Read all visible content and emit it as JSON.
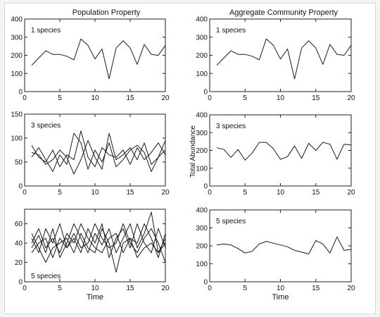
{
  "columns": {
    "left_title": "Population Property",
    "right_title": "Aggregate Community Property"
  },
  "shared_ylabel": "Total Abundance",
  "chart_data": [
    {
      "type": "line",
      "panel": "population-1-species",
      "annotation": "1 species",
      "xlabel": "",
      "xlim": [
        0,
        20
      ],
      "ylim": [
        0,
        400
      ],
      "xticks": [
        0,
        5,
        10,
        15,
        20
      ],
      "yticks": [
        0,
        100,
        200,
        300,
        400
      ],
      "series": [
        {
          "x": [
            1,
            2,
            3,
            4,
            5,
            6,
            7,
            8,
            9,
            10,
            11,
            12,
            13,
            14,
            15,
            16,
            17,
            18,
            19,
            20
          ],
          "values": [
            145,
            185,
            225,
            205,
            205,
            195,
            175,
            290,
            255,
            180,
            235,
            70,
            240,
            280,
            240,
            150,
            260,
            205,
            200,
            255
          ]
        }
      ]
    },
    {
      "type": "line",
      "panel": "aggregate-1-species",
      "annotation": "1 species",
      "xlabel": "",
      "xlim": [
        0,
        20
      ],
      "ylim": [
        0,
        400
      ],
      "xticks": [
        0,
        5,
        10,
        15,
        20
      ],
      "yticks": [
        0,
        100,
        200,
        300,
        400
      ],
      "series": [
        {
          "x": [
            1,
            2,
            3,
            4,
            5,
            6,
            7,
            8,
            9,
            10,
            11,
            12,
            13,
            14,
            15,
            16,
            17,
            18,
            19,
            20
          ],
          "values": [
            145,
            185,
            225,
            205,
            205,
            195,
            175,
            290,
            255,
            180,
            235,
            70,
            240,
            280,
            240,
            150,
            260,
            205,
            200,
            255
          ]
        }
      ]
    },
    {
      "type": "line",
      "panel": "population-3-species",
      "annotation": "3 species",
      "xlabel": "",
      "xlim": [
        0,
        20
      ],
      "ylim": [
        0,
        150
      ],
      "xticks": [
        0,
        5,
        10,
        15,
        20
      ],
      "yticks": [
        0,
        50,
        100,
        150
      ],
      "series": [
        {
          "x": [
            1,
            2,
            3,
            4,
            5,
            6,
            7,
            8,
            9,
            10,
            11,
            12,
            13,
            14,
            15,
            16,
            17,
            18,
            19,
            20
          ],
          "values": [
            60,
            80,
            55,
            30,
            65,
            45,
            110,
            90,
            35,
            75,
            50,
            90,
            40,
            55,
            75,
            85,
            70,
            30,
            60,
            75
          ]
        },
        {
          "x": [
            1,
            2,
            3,
            4,
            5,
            6,
            7,
            8,
            9,
            10,
            11,
            12,
            13,
            14,
            15,
            16,
            17,
            18,
            19,
            20
          ],
          "values": [
            85,
            60,
            50,
            75,
            40,
            65,
            55,
            115,
            60,
            40,
            80,
            65,
            60,
            75,
            45,
            80,
            55,
            70,
            90,
            65
          ]
        },
        {
          "x": [
            1,
            2,
            3,
            4,
            5,
            6,
            7,
            8,
            9,
            10,
            11,
            12,
            13,
            14,
            15,
            16,
            17,
            18,
            19,
            20
          ],
          "values": [
            70,
            65,
            45,
            55,
            75,
            60,
            25,
            55,
            95,
            60,
            35,
            110,
            55,
            65,
            80,
            55,
            90,
            45,
            60,
            95
          ]
        }
      ]
    },
    {
      "type": "line",
      "panel": "aggregate-3-species",
      "annotation": "3 species",
      "xlabel": "",
      "xlim": [
        0,
        20
      ],
      "ylim": [
        0,
        400
      ],
      "xticks": [
        0,
        5,
        10,
        15,
        20
      ],
      "yticks": [
        0,
        100,
        200,
        300,
        400
      ],
      "series": [
        {
          "x": [
            1,
            2,
            3,
            4,
            5,
            6,
            7,
            8,
            9,
            10,
            11,
            12,
            13,
            14,
            15,
            16,
            17,
            18,
            19,
            20
          ],
          "values": [
            215,
            205,
            160,
            205,
            145,
            185,
            245,
            245,
            210,
            150,
            165,
            225,
            155,
            240,
            200,
            245,
            235,
            150,
            235,
            230
          ]
        }
      ]
    },
    {
      "type": "line",
      "panel": "population-5-species",
      "annotation": "5 species",
      "xlabel": "Time",
      "xlim": [
        0,
        20
      ],
      "ylim": [
        0,
        75
      ],
      "xticks": [
        0,
        5,
        10,
        15,
        20
      ],
      "yticks": [
        0,
        20,
        40,
        60
      ],
      "series": [
        {
          "x": [
            1,
            2,
            3,
            4,
            5,
            6,
            7,
            8,
            9,
            10,
            11,
            12,
            13,
            14,
            15,
            16,
            17,
            18,
            19,
            20
          ],
          "values": [
            35,
            48,
            30,
            55,
            25,
            40,
            60,
            45,
            30,
            50,
            38,
            55,
            30,
            45,
            60,
            35,
            50,
            72,
            30,
            45
          ]
        },
        {
          "x": [
            1,
            2,
            3,
            4,
            5,
            6,
            7,
            8,
            9,
            10,
            11,
            12,
            13,
            14,
            15,
            16,
            17,
            18,
            19,
            20
          ],
          "values": [
            45,
            30,
            55,
            40,
            60,
            35,
            45,
            30,
            55,
            40,
            60,
            25,
            45,
            55,
            35,
            60,
            40,
            30,
            55,
            35
          ]
        },
        {
          "x": [
            1,
            2,
            3,
            4,
            5,
            6,
            7,
            8,
            9,
            10,
            11,
            12,
            13,
            14,
            15,
            16,
            17,
            18,
            19,
            20
          ],
          "values": [
            40,
            55,
            35,
            45,
            30,
            50,
            40,
            60,
            45,
            35,
            30,
            45,
            50,
            30,
            45,
            40,
            60,
            45,
            25,
            50
          ]
        },
        {
          "x": [
            1,
            2,
            3,
            4,
            5,
            6,
            7,
            8,
            9,
            10,
            11,
            12,
            13,
            14,
            15,
            16,
            17,
            18,
            19,
            20
          ],
          "values": [
            30,
            40,
            45,
            25,
            45,
            35,
            50,
            35,
            40,
            60,
            45,
            35,
            40,
            60,
            40,
            30,
            45,
            55,
            40,
            20
          ]
        },
        {
          "x": [
            1,
            2,
            3,
            4,
            5,
            6,
            7,
            8,
            9,
            10,
            11,
            12,
            13,
            14,
            15,
            16,
            17,
            18,
            19,
            20
          ],
          "values": [
            50,
            35,
            20,
            35,
            40,
            45,
            30,
            50,
            35,
            30,
            55,
            40,
            10,
            40,
            45,
            25,
            35,
            40,
            30,
            40
          ]
        }
      ]
    },
    {
      "type": "line",
      "panel": "aggregate-5-species",
      "annotation": "5 species",
      "xlabel": "Time",
      "xlim": [
        0,
        20
      ],
      "ylim": [
        0,
        400
      ],
      "xticks": [
        0,
        5,
        10,
        15,
        20
      ],
      "yticks": [
        0,
        100,
        200,
        300,
        400
      ],
      "series": [
        {
          "x": [
            1,
            2,
            3,
            4,
            5,
            6,
            7,
            8,
            9,
            10,
            11,
            12,
            13,
            14,
            15,
            16,
            17,
            18,
            19,
            20
          ],
          "values": [
            205,
            210,
            205,
            185,
            160,
            170,
            210,
            225,
            215,
            205,
            195,
            175,
            165,
            155,
            230,
            210,
            160,
            250,
            175,
            180
          ]
        }
      ]
    }
  ]
}
